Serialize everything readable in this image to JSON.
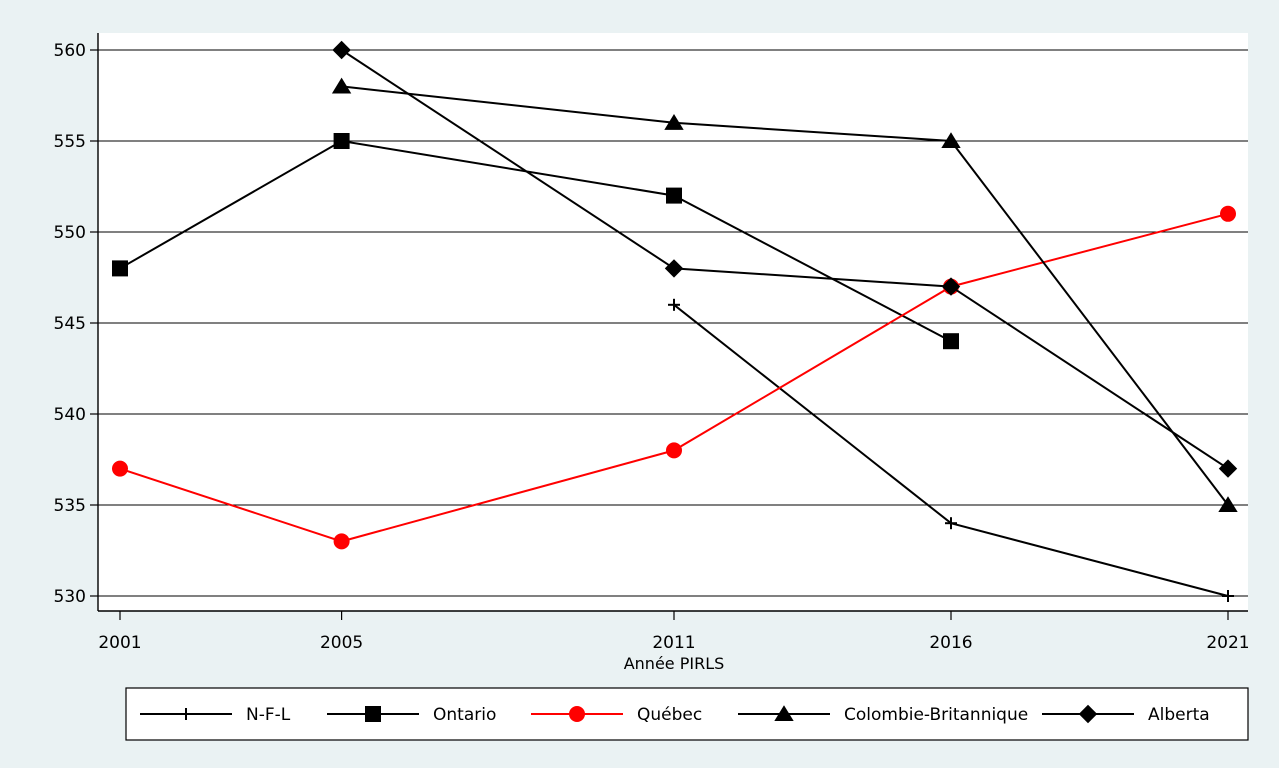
{
  "chart_data": {
    "type": "line",
    "title": "",
    "xlabel": "Année PIRLS",
    "ylabel": "",
    "x": [
      "2001",
      "2005",
      "2011",
      "2016",
      "2021"
    ],
    "ylim": [
      529,
      562
    ],
    "yticks": [
      530,
      535,
      540,
      545,
      550,
      555,
      560
    ],
    "grid": true,
    "legend_position": "bottom",
    "series": [
      {
        "name": "N-F-L",
        "color": "#000000",
        "marker": "plus",
        "values": [
          null,
          null,
          546,
          534,
          530
        ]
      },
      {
        "name": "Ontario",
        "color": "#000000",
        "marker": "square",
        "values": [
          548,
          555,
          552,
          544,
          null
        ]
      },
      {
        "name": "Québec",
        "color": "#ff0000",
        "marker": "circle",
        "values": [
          537,
          533,
          538,
          547,
          551
        ]
      },
      {
        "name": "Colombie-Britannique",
        "color": "#000000",
        "marker": "triangle",
        "values": [
          null,
          558,
          556,
          555,
          535
        ]
      },
      {
        "name": "Alberta",
        "color": "#000000",
        "marker": "diamond",
        "values": [
          null,
          560,
          548,
          547,
          537
        ]
      }
    ]
  },
  "colors": {
    "outer_background": "#eaf2f3",
    "plot_background": "#ffffff",
    "gridline": "#000000"
  }
}
